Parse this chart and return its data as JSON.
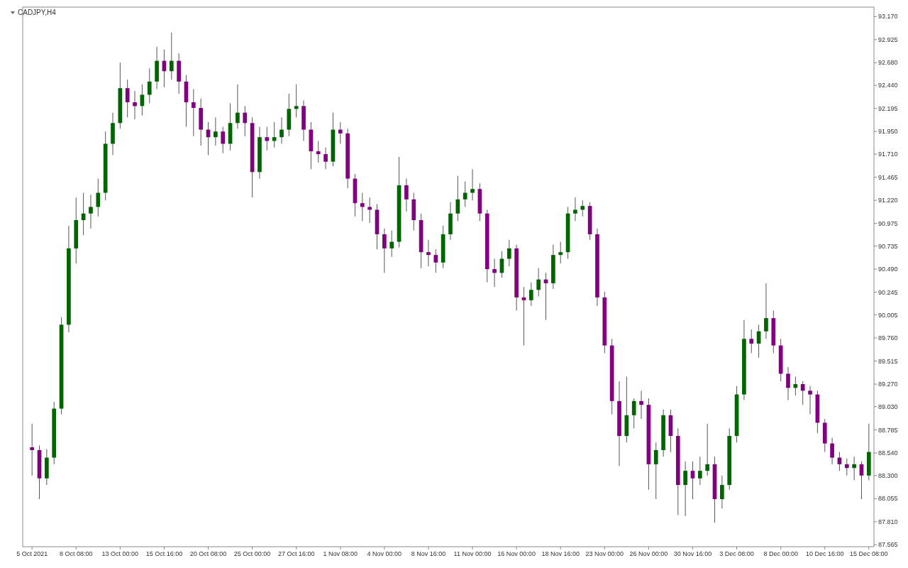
{
  "chart_data": {
    "type": "candlestick",
    "title": "CADJPY,H4",
    "categories": [
      "5 Oct 2021",
      null,
      null,
      null,
      null,
      null,
      "8 Oct 08:00",
      null,
      null,
      null,
      null,
      null,
      "13 Oct 00:00",
      null,
      null,
      null,
      null,
      null,
      "15 Oct 16:00",
      null,
      null,
      null,
      null,
      null,
      "20 Oct 08:00",
      null,
      null,
      null,
      null,
      null,
      "25 Oct 00:00",
      null,
      null,
      null,
      null,
      null,
      "27 Oct 16:00",
      null,
      null,
      null,
      null,
      null,
      "1 Nov 08:00",
      null,
      null,
      null,
      null,
      null,
      "4 Nov 00:00",
      null,
      null,
      null,
      null,
      null,
      "8 Nov 16:00",
      null,
      null,
      null,
      null,
      null,
      "11 Nov 00:00",
      null,
      null,
      null,
      null,
      null,
      "16 Nov 00:00",
      null,
      null,
      null,
      null,
      null,
      "18 Nov 16:00",
      null,
      null,
      null,
      null,
      null,
      "23 Nov 00:00",
      null,
      null,
      null,
      null,
      null,
      "26 Nov 00:00",
      null,
      null,
      null,
      null,
      null,
      "30 Nov 16:00",
      null,
      null,
      null,
      null,
      null,
      "3 Dec 08:00",
      null,
      null,
      null,
      null,
      null,
      "8 Dec 00:00",
      null,
      null,
      null,
      null,
      null,
      "10 Dec 16:00",
      null,
      null,
      null,
      null,
      null,
      "15 Dec 08:00"
    ],
    "ohlc": [
      [
        88.6,
        88.85,
        88.3,
        88.57
      ],
      [
        88.57,
        88.62,
        88.05,
        88.27
      ],
      [
        88.27,
        88.58,
        88.2,
        88.49
      ],
      [
        88.49,
        89.08,
        88.42,
        89.01
      ],
      [
        89.01,
        89.98,
        88.95,
        89.9
      ],
      [
        89.9,
        90.95,
        89.82,
        90.71
      ],
      [
        90.71,
        91.25,
        90.55,
        91.01
      ],
      [
        91.01,
        91.3,
        90.85,
        91.08
      ],
      [
        91.08,
        91.28,
        90.92,
        91.15
      ],
      [
        91.15,
        91.45,
        91.05,
        91.3
      ],
      [
        91.3,
        91.95,
        91.22,
        91.82
      ],
      [
        91.82,
        92.15,
        91.7,
        92.04
      ],
      [
        92.04,
        92.68,
        91.98,
        92.41
      ],
      [
        92.41,
        92.5,
        92.1,
        92.26
      ],
      [
        92.26,
        92.38,
        92.08,
        92.22
      ],
      [
        92.22,
        92.45,
        92.12,
        92.34
      ],
      [
        92.34,
        92.62,
        92.25,
        92.48
      ],
      [
        92.48,
        92.85,
        92.4,
        92.7
      ],
      [
        92.7,
        92.82,
        92.42,
        92.59
      ],
      [
        92.59,
        93.0,
        92.5,
        92.7
      ],
      [
        92.7,
        92.78,
        92.35,
        92.48
      ],
      [
        92.48,
        92.55,
        92.0,
        92.26
      ],
      [
        92.26,
        92.4,
        91.9,
        92.2
      ],
      [
        92.2,
        92.3,
        91.8,
        91.97
      ],
      [
        91.97,
        92.05,
        91.7,
        91.89
      ],
      [
        91.89,
        92.1,
        91.8,
        91.95
      ],
      [
        91.95,
        92.0,
        91.72,
        91.82
      ],
      [
        91.82,
        92.25,
        91.75,
        92.04
      ],
      [
        92.04,
        92.45,
        91.98,
        92.15
      ],
      [
        92.15,
        92.22,
        91.9,
        92.04
      ],
      [
        92.04,
        92.1,
        91.25,
        91.52
      ],
      [
        91.52,
        92.0,
        91.45,
        91.89
      ],
      [
        91.89,
        92.0,
        91.75,
        91.85
      ],
      [
        91.85,
        92.05,
        91.78,
        91.89
      ],
      [
        91.89,
        92.1,
        91.82,
        91.97
      ],
      [
        91.97,
        92.35,
        91.9,
        92.19
      ],
      [
        92.19,
        92.45,
        92.1,
        92.22
      ],
      [
        92.22,
        92.28,
        91.85,
        91.97
      ],
      [
        91.97,
        92.05,
        91.55,
        91.74
      ],
      [
        91.74,
        91.85,
        91.62,
        91.71
      ],
      [
        91.71,
        91.78,
        91.55,
        91.63
      ],
      [
        91.63,
        92.15,
        91.58,
        91.97
      ],
      [
        91.97,
        92.05,
        91.82,
        91.93
      ],
      [
        91.93,
        91.98,
        91.35,
        91.45
      ],
      [
        91.45,
        91.5,
        91.05,
        91.19
      ],
      [
        91.19,
        91.3,
        91.0,
        91.15
      ],
      [
        91.15,
        91.25,
        90.98,
        91.12
      ],
      [
        91.12,
        91.18,
        90.7,
        90.86
      ],
      [
        90.86,
        90.92,
        90.45,
        90.71
      ],
      [
        90.71,
        90.9,
        90.62,
        90.78
      ],
      [
        90.78,
        91.68,
        90.72,
        91.38
      ],
      [
        91.38,
        91.45,
        91.1,
        91.23
      ],
      [
        91.23,
        91.3,
        90.9,
        91.01
      ],
      [
        91.01,
        91.08,
        90.5,
        90.67
      ],
      [
        90.67,
        90.8,
        90.52,
        90.64
      ],
      [
        90.64,
        90.7,
        90.45,
        90.56
      ],
      [
        90.56,
        90.95,
        90.5,
        90.86
      ],
      [
        90.86,
        91.2,
        90.8,
        91.08
      ],
      [
        91.08,
        91.48,
        91.0,
        91.23
      ],
      [
        91.23,
        91.42,
        91.15,
        91.3
      ],
      [
        91.3,
        91.55,
        91.22,
        91.34
      ],
      [
        91.34,
        91.4,
        91.0,
        91.08
      ],
      [
        91.08,
        91.12,
        90.35,
        90.49
      ],
      [
        90.49,
        90.6,
        90.3,
        90.45
      ],
      [
        90.45,
        90.68,
        90.4,
        90.6
      ],
      [
        90.6,
        90.8,
        90.52,
        90.71
      ],
      [
        90.71,
        90.75,
        90.05,
        90.19
      ],
      [
        90.19,
        90.3,
        89.68,
        90.16
      ],
      [
        90.16,
        90.35,
        90.1,
        90.27
      ],
      [
        90.27,
        90.5,
        90.2,
        90.38
      ],
      [
        90.38,
        90.45,
        89.95,
        90.34
      ],
      [
        90.34,
        90.75,
        90.28,
        90.64
      ],
      [
        90.64,
        90.78,
        90.55,
        90.67
      ],
      [
        90.67,
        91.15,
        90.6,
        91.08
      ],
      [
        91.08,
        91.25,
        91.0,
        91.12
      ],
      [
        91.12,
        91.22,
        91.05,
        91.16
      ],
      [
        91.16,
        91.2,
        90.8,
        90.86
      ],
      [
        90.86,
        90.92,
        90.1,
        90.19
      ],
      [
        90.19,
        90.25,
        89.6,
        89.68
      ],
      [
        89.68,
        89.75,
        88.95,
        89.09
      ],
      [
        89.09,
        89.3,
        88.4,
        88.72
      ],
      [
        88.72,
        89.35,
        88.65,
        88.94
      ],
      [
        88.94,
        89.12,
        88.8,
        89.09
      ],
      [
        89.09,
        89.2,
        88.9,
        89.05
      ],
      [
        89.05,
        89.12,
        88.15,
        88.42
      ],
      [
        88.42,
        88.65,
        88.05,
        88.57
      ],
      [
        88.57,
        89.0,
        88.5,
        88.94
      ],
      [
        88.94,
        89.0,
        88.55,
        88.72
      ],
      [
        88.72,
        88.8,
        87.88,
        88.2
      ],
      [
        88.2,
        88.45,
        87.87,
        88.35
      ],
      [
        88.35,
        88.45,
        88.05,
        88.27
      ],
      [
        88.27,
        88.5,
        88.2,
        88.35
      ],
      [
        88.35,
        88.85,
        88.3,
        88.42
      ],
      [
        88.42,
        88.5,
        87.8,
        88.05
      ],
      [
        88.05,
        88.3,
        87.95,
        88.2
      ],
      [
        88.2,
        88.8,
        88.15,
        88.72
      ],
      [
        88.72,
        89.25,
        88.65,
        89.16
      ],
      [
        89.16,
        89.95,
        89.1,
        89.75
      ],
      [
        89.75,
        89.85,
        89.6,
        89.7
      ],
      [
        89.7,
        89.9,
        89.55,
        89.83
      ],
      [
        89.83,
        90.34,
        89.75,
        89.97
      ],
      [
        89.97,
        90.05,
        89.6,
        89.68
      ],
      [
        89.68,
        89.75,
        89.3,
        89.38
      ],
      [
        89.38,
        89.45,
        89.1,
        89.23
      ],
      [
        89.23,
        89.35,
        89.15,
        89.27
      ],
      [
        89.27,
        89.3,
        89.05,
        89.2
      ],
      [
        89.2,
        89.25,
        88.95,
        89.16
      ],
      [
        89.16,
        89.2,
        88.75,
        88.86
      ],
      [
        88.86,
        88.9,
        88.55,
        88.64
      ],
      [
        88.64,
        88.7,
        88.42,
        88.49
      ],
      [
        88.49,
        88.55,
        88.35,
        88.42
      ],
      [
        88.42,
        88.48,
        88.3,
        88.38
      ],
      [
        88.38,
        88.5,
        88.25,
        88.42
      ],
      [
        88.42,
        88.45,
        88.05,
        88.3
      ],
      [
        88.3,
        88.85,
        88.25,
        88.55
      ]
    ],
    "ylim": [
      87.545,
      93.27
    ],
    "yticks": [
      {
        "value": 87.565,
        "label": "87.565"
      },
      {
        "value": 87.81,
        "label": "87.810"
      },
      {
        "value": 88.055,
        "label": "88.055"
      },
      {
        "value": 88.3,
        "label": "88.300"
      },
      {
        "value": 88.54,
        "label": "88.540"
      },
      {
        "value": 88.785,
        "label": "88.785"
      },
      {
        "value": 89.03,
        "label": "89.030"
      },
      {
        "value": 89.27,
        "label": "89.270"
      },
      {
        "value": 89.515,
        "label": "89.515"
      },
      {
        "value": 89.76,
        "label": "89.760"
      },
      {
        "value": 90.005,
        "label": "90.005"
      },
      {
        "value": 90.245,
        "label": "90.245"
      },
      {
        "value": 90.49,
        "label": "90.490"
      },
      {
        "value": 90.735,
        "label": "90.735"
      },
      {
        "value": 90.975,
        "label": "90.975"
      },
      {
        "value": 91.22,
        "label": "91.220"
      },
      {
        "value": 91.465,
        "label": "91.465"
      },
      {
        "value": 91.71,
        "label": "91.710"
      },
      {
        "value": 91.95,
        "label": "91.950"
      },
      {
        "value": 92.195,
        "label": "92.195"
      },
      {
        "value": 92.44,
        "label": "92.440"
      },
      {
        "value": 92.68,
        "label": "92.680"
      },
      {
        "value": 92.925,
        "label": "92.925"
      },
      {
        "value": 93.17,
        "label": "93.170"
      }
    ],
    "grid": false
  }
}
